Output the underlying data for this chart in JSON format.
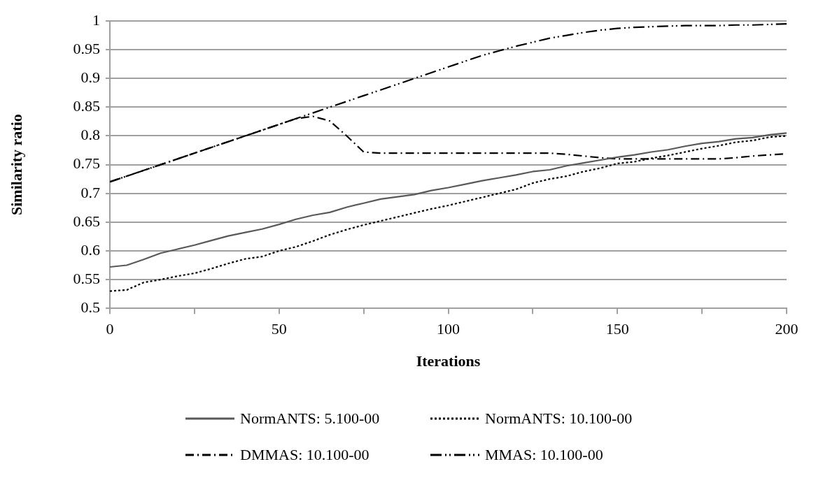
{
  "chart_data": {
    "type": "line",
    "xlabel": "Iterations",
    "ylabel": "Similarity ratio",
    "x": [
      0,
      5,
      10,
      15,
      20,
      25,
      30,
      35,
      40,
      45,
      50,
      55,
      60,
      65,
      70,
      75,
      80,
      85,
      90,
      95,
      100,
      105,
      110,
      115,
      120,
      125,
      130,
      135,
      140,
      145,
      150,
      155,
      160,
      165,
      170,
      175,
      180,
      185,
      190,
      195,
      200
    ],
    "series": [
      {
        "name": "NormANTS: 5.100-00",
        "color": "#595959",
        "line_style": "solid",
        "values": [
          0.572,
          0.575,
          0.585,
          0.596,
          0.603,
          0.61,
          0.618,
          0.626,
          0.632,
          0.638,
          0.646,
          0.655,
          0.662,
          0.667,
          0.676,
          0.683,
          0.69,
          0.694,
          0.698,
          0.705,
          0.71,
          0.716,
          0.722,
          0.727,
          0.732,
          0.738,
          0.741,
          0.748,
          0.753,
          0.758,
          0.763,
          0.767,
          0.772,
          0.776,
          0.782,
          0.787,
          0.79,
          0.795,
          0.797,
          0.802,
          0.805
        ]
      },
      {
        "name": "NormANTS: 10.100-00",
        "color": "#000000",
        "line_style": "dotted",
        "values": [
          0.53,
          0.532,
          0.545,
          0.55,
          0.556,
          0.561,
          0.569,
          0.578,
          0.586,
          0.59,
          0.6,
          0.607,
          0.617,
          0.628,
          0.637,
          0.645,
          0.652,
          0.659,
          0.666,
          0.673,
          0.679,
          0.686,
          0.693,
          0.7,
          0.707,
          0.718,
          0.725,
          0.73,
          0.738,
          0.744,
          0.752,
          0.755,
          0.761,
          0.766,
          0.772,
          0.778,
          0.783,
          0.789,
          0.792,
          0.798,
          0.8
        ]
      },
      {
        "name": "DMMAS: 10.100-00",
        "color": "#000000",
        "line_style": "dashdot",
        "values": [
          0.72,
          0.73,
          0.74,
          0.75,
          0.76,
          0.77,
          0.78,
          0.79,
          0.8,
          0.81,
          0.82,
          0.83,
          0.834,
          0.826,
          0.8,
          0.772,
          0.77,
          0.77,
          0.77,
          0.77,
          0.77,
          0.77,
          0.77,
          0.77,
          0.77,
          0.77,
          0.77,
          0.768,
          0.765,
          0.762,
          0.76,
          0.76,
          0.76,
          0.76,
          0.76,
          0.76,
          0.76,
          0.762,
          0.765,
          0.767,
          0.769
        ]
      },
      {
        "name": "MMAS: 10.100-00",
        "color": "#000000",
        "line_style": "dashdotdot",
        "values": [
          0.72,
          0.73,
          0.74,
          0.75,
          0.76,
          0.77,
          0.78,
          0.79,
          0.8,
          0.81,
          0.82,
          0.83,
          0.84,
          0.85,
          0.86,
          0.87,
          0.88,
          0.89,
          0.9,
          0.91,
          0.92,
          0.93,
          0.94,
          0.948,
          0.956,
          0.963,
          0.97,
          0.975,
          0.98,
          0.984,
          0.987,
          0.989,
          0.99,
          0.991,
          0.992,
          0.992,
          0.992,
          0.993,
          0.993,
          0.994,
          0.995
        ]
      }
    ],
    "xlim": [
      0,
      200
    ],
    "xticks": [
      0,
      {
        "value": 25,
        "label": null
      },
      50,
      {
        "value": 75,
        "label": null
      },
      100,
      {
        "value": 125,
        "label": null
      },
      150,
      {
        "value": 175,
        "label": null
      },
      200
    ],
    "ylim": [
      0.5,
      1
    ],
    "yticks": [
      0.5,
      0.55,
      0.6,
      0.65,
      0.7,
      0.75,
      0.8,
      0.85,
      0.9,
      0.95,
      1
    ],
    "grid": "y",
    "legend": "bottom",
    "marker": "none"
  }
}
